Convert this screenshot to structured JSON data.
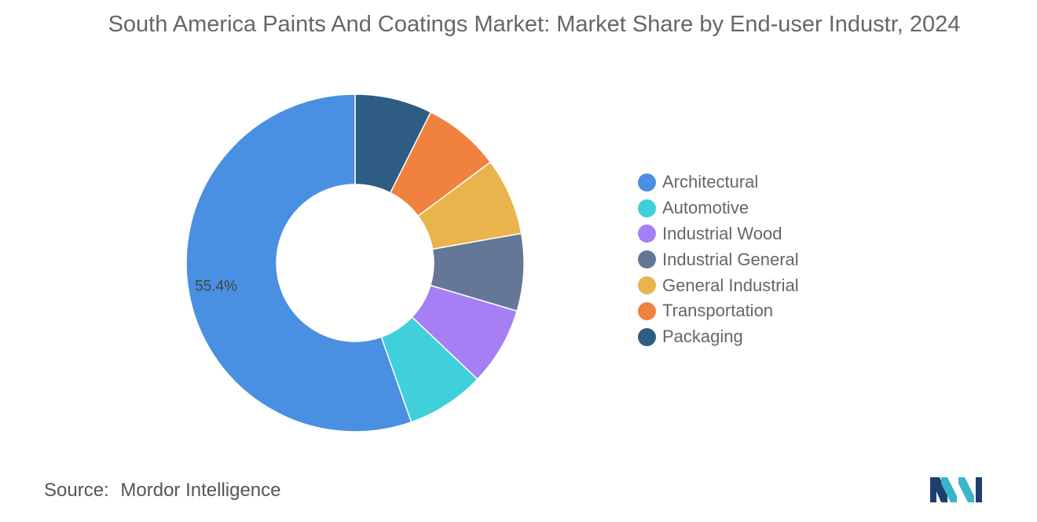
{
  "title": "South America Paints And Coatings Market: Market Share by End-user Industr, 2024",
  "chart_data": {
    "type": "pie",
    "variant": "donut",
    "title": "South America Paints And Coatings Market: Market Share by End-user Industr, 2024",
    "unit": "%",
    "series": [
      {
        "name": "Architectural",
        "value": 55.4,
        "color": "#4a90e2",
        "data_label": "55.4%"
      },
      {
        "name": "Automotive",
        "value": 7.5,
        "color": "#3fd0db"
      },
      {
        "name": "Industrial Wood",
        "value": 7.5,
        "color": "#a77ff4"
      },
      {
        "name": "Industrial General",
        "value": 7.4,
        "color": "#647797"
      },
      {
        "name": "General Industrial",
        "value": 7.4,
        "color": "#e9b44c"
      },
      {
        "name": "Transportation",
        "value": 7.4,
        "color": "#f0813f"
      },
      {
        "name": "Packaging",
        "value": 7.4,
        "color": "#2e5c82"
      }
    ],
    "slice_order_clockwise_from_top": [
      "Packaging",
      "Transportation",
      "General Industrial",
      "Industrial General",
      "Industrial Wood",
      "Automotive",
      "Architectural"
    ],
    "legend_position": "right"
  },
  "source": {
    "label": "Source:",
    "name": "Mordor Intelligence"
  },
  "logo": {
    "icon": "mordor-intelligence-logo-icon",
    "colors": [
      "#1d3f6e",
      "#3bb6c9"
    ]
  }
}
